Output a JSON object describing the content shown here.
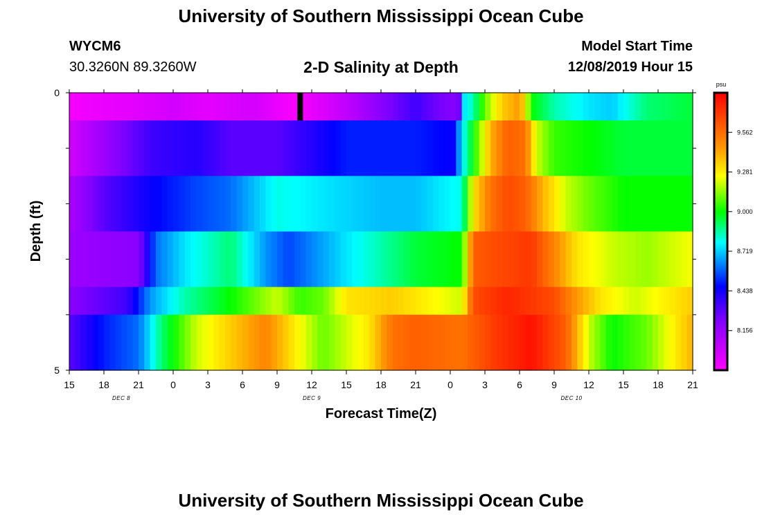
{
  "header": {
    "title": "University of Southern Mississippi Ocean Cube",
    "station_id": "WYCM6",
    "station_coords": "30.3260N 89.3260W",
    "plot_title": "2-D Salinity at Depth",
    "model_start_label": "Model Start Time",
    "model_start_value": "12/08/2019 Hour 15"
  },
  "footer": {
    "title": "University of Southern Mississippi Ocean Cube"
  },
  "chart_data": {
    "type": "heatmap",
    "title": "2-D Salinity at Depth",
    "xlabel": "Forecast Time(Z)",
    "ylabel": "Depth (ft)",
    "x_hours_range": [
      0,
      54
    ],
    "ylim": [
      0,
      5
    ],
    "x_tick_labels": [
      "15",
      "18",
      "21",
      "0",
      "3",
      "6",
      "9",
      "12",
      "15",
      "18",
      "21",
      "0",
      "3",
      "6",
      "9",
      "12",
      "15",
      "18",
      "21"
    ],
    "y_tick_labels": [
      "0",
      "5"
    ],
    "day_labels": [
      {
        "label": "DEC 8",
        "hour": 4.5
      },
      {
        "label": "DEC 9",
        "hour": 21
      },
      {
        "label": "DEC 10",
        "hour": 43.5
      }
    ],
    "current_time_hour": 20,
    "colorbar": {
      "unit": "psu",
      "vmin": 7.875,
      "vmax": 9.843,
      "tick_values": [
        9.562,
        9.281,
        9.0,
        8.719,
        8.438,
        8.156
      ],
      "tick_labels": [
        "9.562",
        "9.281",
        "9.000",
        "8.719",
        "8.438",
        "8.156"
      ]
    },
    "rows": [
      {
        "depth_top": 0,
        "depth_bottom": 0.5,
        "keys": [
          [
            0,
            7.9
          ],
          [
            5,
            7.95
          ],
          [
            9,
            8.0
          ],
          [
            12,
            7.95
          ],
          [
            16,
            8.0
          ],
          [
            19,
            7.9
          ],
          [
            20,
            7.9
          ],
          [
            24,
            8.05
          ],
          [
            27,
            8.2
          ],
          [
            30,
            8.35
          ],
          [
            32,
            8.25
          ],
          [
            33.7,
            8.2
          ],
          [
            34.2,
            8.75
          ],
          [
            35,
            8.85
          ],
          [
            36,
            9.1
          ],
          [
            37.5,
            9.35
          ],
          [
            39,
            9.45
          ],
          [
            39.5,
            9.3
          ],
          [
            40,
            9.0
          ],
          [
            42,
            8.85
          ],
          [
            45,
            8.75
          ],
          [
            47,
            8.72
          ],
          [
            50,
            8.9
          ],
          [
            54,
            8.95
          ]
        ]
      },
      {
        "depth_top": 0.5,
        "depth_bottom": 1.5,
        "keys": [
          [
            0,
            8.0
          ],
          [
            4,
            8.2
          ],
          [
            7,
            8.35
          ],
          [
            11,
            8.4
          ],
          [
            14,
            8.3
          ],
          [
            18,
            8.3
          ],
          [
            21,
            8.4
          ],
          [
            24,
            8.5
          ],
          [
            30,
            8.5
          ],
          [
            33.3,
            8.45
          ],
          [
            34,
            8.75
          ],
          [
            35,
            9.0
          ],
          [
            36.5,
            9.4
          ],
          [
            38,
            9.6
          ],
          [
            39.5,
            9.55
          ],
          [
            40.5,
            9.2
          ],
          [
            42,
            9.05
          ],
          [
            45,
            9.0
          ],
          [
            48,
            8.95
          ],
          [
            51,
            8.95
          ],
          [
            54,
            8.95
          ]
        ]
      },
      {
        "depth_top": 1.5,
        "depth_bottom": 2.5,
        "keys": [
          [
            0,
            8.1
          ],
          [
            3,
            8.3
          ],
          [
            7,
            8.45
          ],
          [
            11,
            8.55
          ],
          [
            14,
            8.6
          ],
          [
            18,
            8.8
          ],
          [
            22,
            8.75
          ],
          [
            27,
            8.7
          ],
          [
            30,
            8.7
          ],
          [
            34,
            8.8
          ],
          [
            35,
            9.3
          ],
          [
            36.5,
            9.55
          ],
          [
            38,
            9.65
          ],
          [
            39.5,
            9.6
          ],
          [
            41,
            9.4
          ],
          [
            43,
            9.2
          ],
          [
            45,
            9.1
          ],
          [
            48,
            9.0
          ],
          [
            54,
            9.0
          ]
        ]
      },
      {
        "depth_top": 2.5,
        "depth_bottom": 3.5,
        "keys": [
          [
            0,
            8.15
          ],
          [
            6,
            8.2
          ],
          [
            7.5,
            8.6
          ],
          [
            10,
            8.75
          ],
          [
            14,
            8.9
          ],
          [
            17,
            8.65
          ],
          [
            19,
            8.55
          ],
          [
            24,
            8.75
          ],
          [
            27,
            8.85
          ],
          [
            30,
            8.95
          ],
          [
            34,
            9.0
          ],
          [
            35,
            9.6
          ],
          [
            37,
            9.65
          ],
          [
            40,
            9.7
          ],
          [
            42,
            9.5
          ],
          [
            44,
            9.3
          ],
          [
            47,
            9.2
          ],
          [
            50,
            9.15
          ],
          [
            54,
            9.25
          ]
        ]
      },
      {
        "depth_top": 3.5,
        "depth_bottom": 4.0,
        "keys": [
          [
            0,
            8.2
          ],
          [
            5,
            8.35
          ],
          [
            7,
            8.65
          ],
          [
            10,
            8.85
          ],
          [
            14,
            9.0
          ],
          [
            17,
            9.15
          ],
          [
            18,
            9.2
          ],
          [
            20,
            9.05
          ],
          [
            22,
            9.1
          ],
          [
            24,
            9.3
          ],
          [
            28,
            9.35
          ],
          [
            30,
            9.3
          ],
          [
            34,
            9.2
          ],
          [
            35,
            9.65
          ],
          [
            38,
            9.75
          ],
          [
            42,
            9.65
          ],
          [
            44,
            9.45
          ],
          [
            46,
            9.3
          ],
          [
            49,
            9.2
          ],
          [
            54,
            9.35
          ]
        ]
      },
      {
        "depth_top": 4.0,
        "depth_bottom": 5.0,
        "keys": [
          [
            0,
            8.3
          ],
          [
            3,
            8.5
          ],
          [
            6,
            8.6
          ],
          [
            8,
            8.9
          ],
          [
            11,
            9.2
          ],
          [
            14,
            9.35
          ],
          [
            17,
            9.5
          ],
          [
            20,
            9.25
          ],
          [
            22,
            9.1
          ],
          [
            26,
            9.3
          ],
          [
            28,
            9.55
          ],
          [
            30,
            9.6
          ],
          [
            34,
            9.55
          ],
          [
            37,
            9.7
          ],
          [
            40,
            9.8
          ],
          [
            43,
            9.6
          ],
          [
            45,
            9.2
          ],
          [
            47,
            9.0
          ],
          [
            50,
            9.1
          ],
          [
            54,
            9.4
          ]
        ]
      }
    ]
  },
  "colors": {
    "cursor_bar": "#000000"
  }
}
